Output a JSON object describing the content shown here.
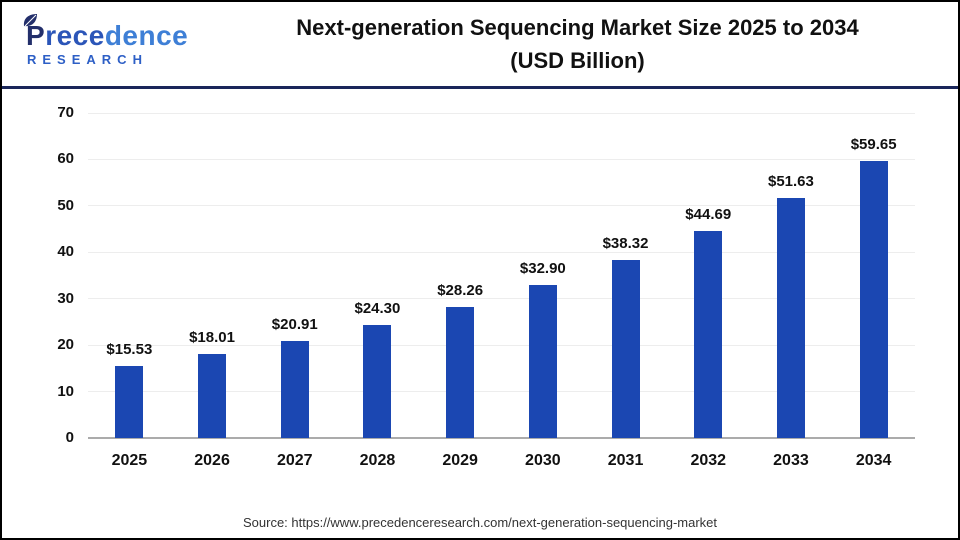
{
  "header": {
    "logo": {
      "part1": "P",
      "part2": "rece",
      "part3": "dence",
      "line2": "RESEARCH"
    },
    "title_line1": "Next-generation Sequencing Market Size 2025 to 2034",
    "title_line2": "(USD Billion)"
  },
  "chart_data": {
    "type": "bar",
    "title": "Next-generation Sequencing Market Size 2025 to 2034 (USD Billion)",
    "categories": [
      "2025",
      "2026",
      "2027",
      "2028",
      "2029",
      "2030",
      "2031",
      "2032",
      "2033",
      "2034"
    ],
    "values": [
      15.53,
      18.01,
      20.91,
      24.3,
      28.26,
      32.9,
      38.32,
      44.69,
      51.63,
      59.65
    ],
    "value_labels": [
      "$15.53",
      "$18.01",
      "$20.91",
      "$24.30",
      "$28.26",
      "$32.90",
      "$38.32",
      "$44.69",
      "$51.63",
      "$59.65"
    ],
    "xlabel": "",
    "ylabel": "",
    "ylim": [
      0,
      70
    ],
    "yticks": [
      0,
      10,
      20,
      30,
      40,
      50,
      60,
      70
    ],
    "grid": true,
    "legend": false,
    "bar_color": "#1B47B2"
  },
  "footer": {
    "source": "Source: https://www.precedenceresearch.com/next-generation-sequencing-market"
  },
  "colors": {
    "bar": "#1B47B2",
    "header_divider": "#1A265A",
    "gridline": "#EDEDED",
    "axis_line": "#ABABAB",
    "logo_navy": "#232F6B",
    "logo_blue": "#2B55B8",
    "logo_light_blue": "#3E7FD6",
    "title_text": "#111111",
    "source_text": "#333333"
  }
}
